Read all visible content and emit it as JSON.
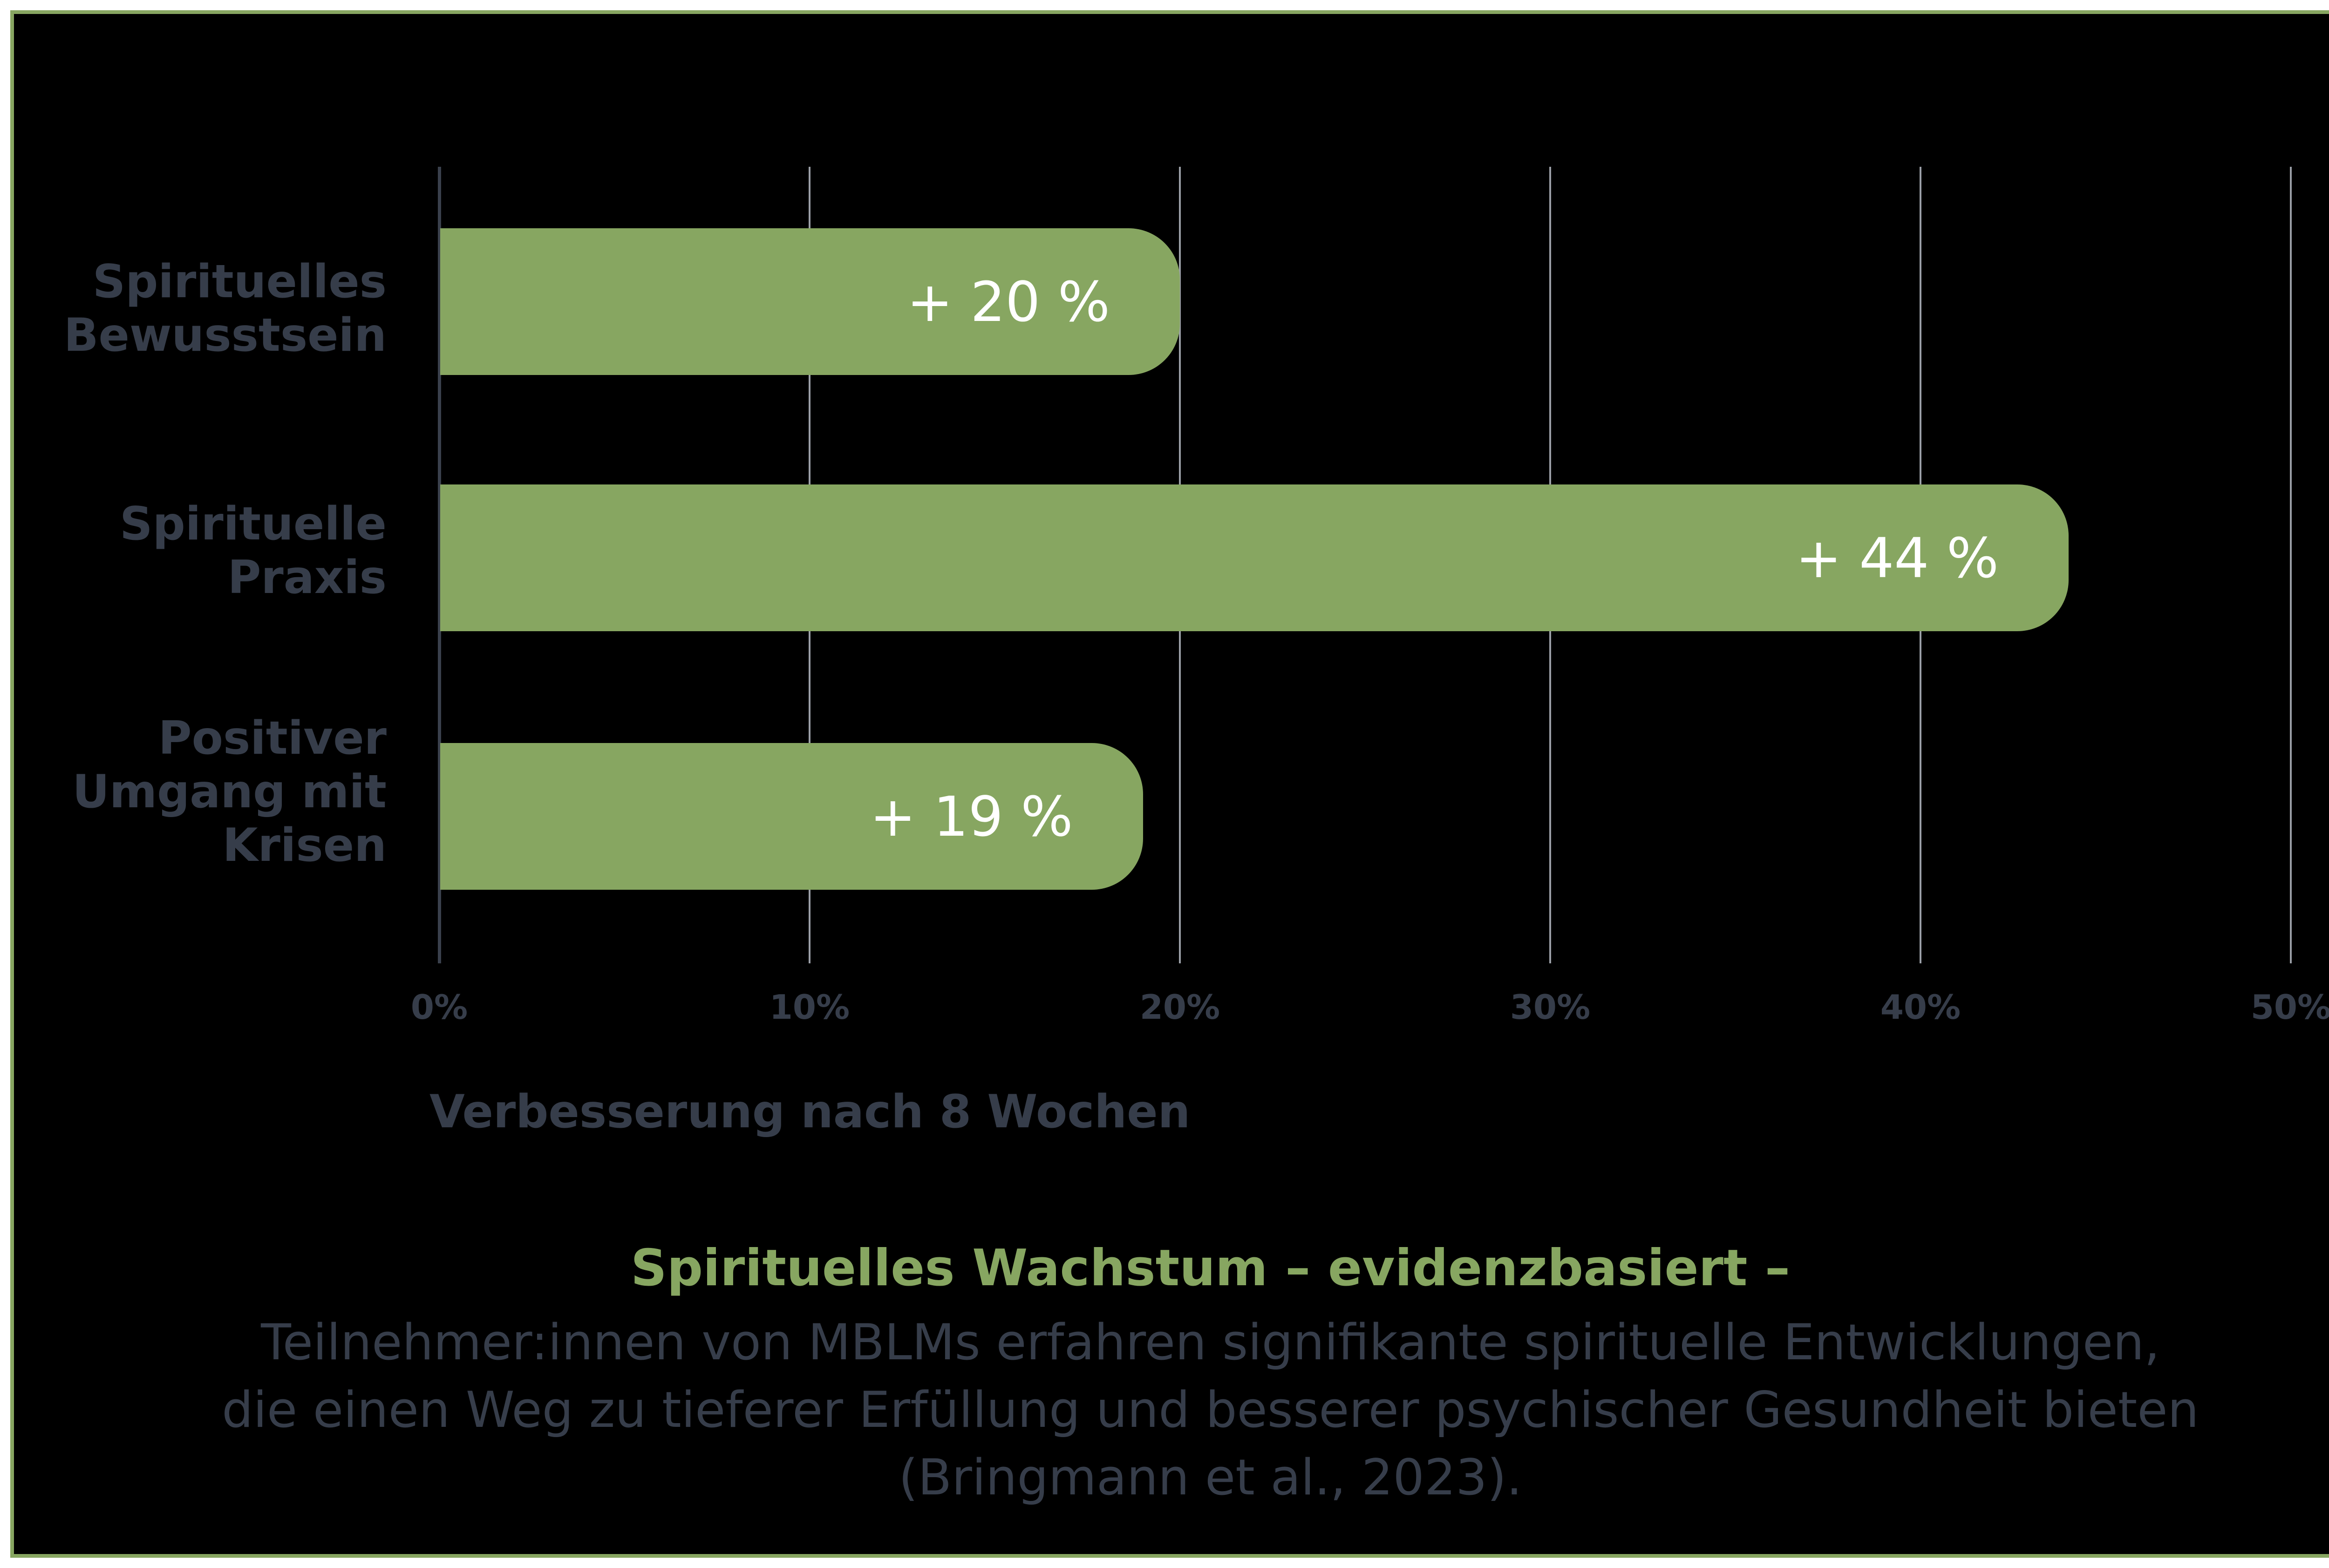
{
  "chart_data": {
    "type": "bar",
    "orientation": "horizontal",
    "categories": [
      "Spirituelles Bewusstsein",
      "Spirituelle Praxis",
      "Positiver Umgang mit Krisen"
    ],
    "category_lines": [
      [
        "Spirituelles",
        "Bewusstsein"
      ],
      [
        "Spirituelle",
        "Praxis"
      ],
      [
        "Positiver",
        "Umgang mit",
        "Krisen"
      ]
    ],
    "values": [
      20,
      44,
      19
    ],
    "data_labels": [
      "+ 20 %",
      "+ 44 %",
      "+ 19 %"
    ],
    "xlabel": "Verbesserung nach 8 Wochen",
    "ylabel": "",
    "xlim": [
      0,
      50
    ],
    "xticks": [
      "0%",
      "10%",
      "20%",
      "30%",
      "40%",
      "50%"
    ],
    "grid": true,
    "bar_color": "#87a661",
    "title": "Spirituelles Wachstum – evidenzbasiert –",
    "subtitle": "Teilnehmer:innen von MBLMs erfahren signifikante spirituelle Entwicklungen, die einen Weg zu tieferer Erfüllung und besserer psychischer Gesundheit bieten (Bringmann et al., 2023)."
  },
  "caption": {
    "title": "Spirituelles Wachstum – evidenzbasiert –",
    "lines": [
      "Teilnehmer:innen von MBLMs erfahren signifikante spirituelle Entwicklungen,",
      "die einen Weg zu tieferer Erfüllung und besserer psychischer Gesundheit bieten",
      "(Bringmann et al., 2023)."
    ]
  },
  "colors": {
    "accent": "#87a661",
    "background": "#000000",
    "text": "#363d4a",
    "gridline": "#9a9ea6"
  }
}
